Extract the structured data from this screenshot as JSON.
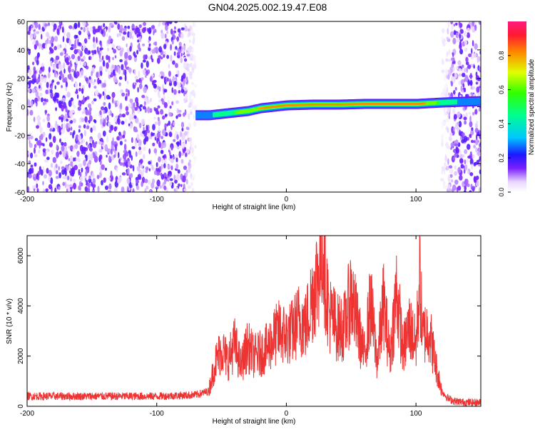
{
  "title": "GN04.2025.002.19.47.E08",
  "chart_data": [
    {
      "type": "heatmap",
      "xlabel": "Height of straight line (km)",
      "ylabel": "Frequency (Hz)",
      "xlim": [
        -200,
        150
      ],
      "ylim": [
        -60,
        60
      ],
      "x_ticks": [
        -200,
        -100,
        0,
        100
      ],
      "y_ticks": [
        -60,
        -40,
        -20,
        0,
        20,
        40,
        60
      ],
      "colorbar": {
        "label": "Normalized spectral amplitude",
        "range": [
          0,
          1
        ],
        "ticks": [
          "0.0",
          "0.2",
          "0.4",
          "0.6",
          "0.8"
        ]
      },
      "signal_ridge": {
        "x": [
          -70,
          -60,
          -50,
          -40,
          -30,
          -20,
          -10,
          0,
          20,
          40,
          60,
          80,
          100,
          120,
          150
        ],
        "frequency": [
          -6,
          -6,
          -5,
          -4,
          -3,
          -1,
          0,
          1,
          1.5,
          1.5,
          2,
          2,
          2,
          3,
          4
        ],
        "peak_amplitude": [
          0.3,
          0.4,
          0.5,
          0.6,
          0.7,
          0.8,
          0.85,
          0.9,
          0.9,
          0.95,
          0.95,
          0.95,
          0.95,
          0.5,
          0.3
        ]
      },
      "noise_region_x": [
        [
          -200,
          -70
        ],
        [
          120,
          150
        ]
      ]
    },
    {
      "type": "line",
      "xlabel": "Height of straight line (km)",
      "ylabel": "SNR (10 * v/v)",
      "xlim": [
        -200,
        150
      ],
      "ylim": [
        0,
        6800
      ],
      "x_ticks": [
        -200,
        -100,
        0,
        100
      ],
      "y_ticks": [
        0,
        2000,
        4000,
        6000
      ],
      "series": [
        {
          "color": "#ee3333",
          "x": [
            -200,
            -150,
            -100,
            -70,
            -60,
            -55,
            -50,
            -45,
            -40,
            -35,
            -30,
            -25,
            -20,
            -15,
            -10,
            -5,
            0,
            5,
            10,
            15,
            20,
            25,
            28,
            30,
            33,
            40,
            45,
            50,
            55,
            60,
            65,
            70,
            75,
            80,
            85,
            90,
            95,
            100,
            103,
            105,
            110,
            115,
            120,
            125,
            130,
            140,
            150
          ],
          "y": [
            400,
            400,
            400,
            450,
            600,
            1700,
            2300,
            1800,
            2500,
            1600,
            2400,
            2000,
            2100,
            2300,
            2700,
            3000,
            2800,
            3000,
            3500,
            3200,
            4400,
            5400,
            6700,
            5200,
            3700,
            3100,
            3200,
            4500,
            3200,
            2000,
            4100,
            1800,
            4100,
            2000,
            4600,
            2200,
            3200,
            2400,
            5200,
            2800,
            3100,
            1700,
            600,
            300,
            200,
            150,
            150
          ],
          "max_visible": 6800
        }
      ]
    }
  ]
}
